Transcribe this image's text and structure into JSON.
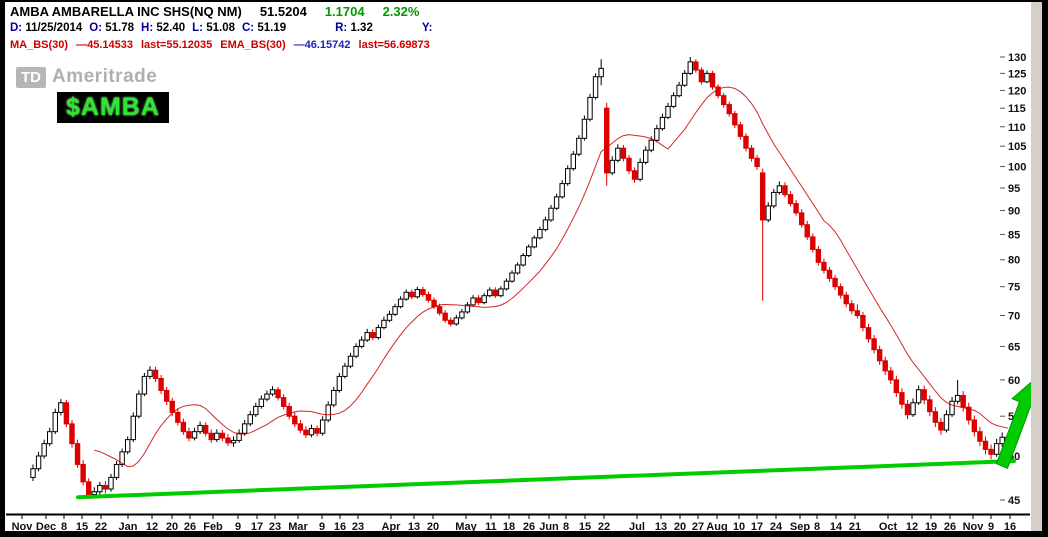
{
  "header": {
    "title": "AMBA AMBARELLA INC SHS(NQ NM)",
    "last": "51.5204",
    "change": "1.1704",
    "change_pct": "2.32%",
    "daily_row": [
      {
        "label": "D:",
        "value": "11/25/2014",
        "gap": false
      },
      {
        "label": "O:",
        "value": "51.78",
        "gap": false
      },
      {
        "label": "H:",
        "value": "52.40",
        "gap": false
      },
      {
        "label": "L:",
        "value": "51.08",
        "gap": false
      },
      {
        "label": "C:",
        "value": "51.19",
        "gap": false
      },
      {
        "label": "R:",
        "value": "1.32",
        "gap": true
      },
      {
        "label": "Y:",
        "value": "",
        "gap": true
      }
    ],
    "studies_row": [
      {
        "text": "MA_BS(30)",
        "color": "#cc0000"
      },
      {
        "text": "—45.14533",
        "color": "#cc0000"
      },
      {
        "text": "last=55.12035",
        "color": "#cc0000"
      },
      {
        "text": "EMA_BS(30)",
        "color": "#cc0000"
      },
      {
        "text": "—46.15742",
        "color": "#2222bb"
      },
      {
        "text": "last=56.69873",
        "color": "#cc0000"
      }
    ]
  },
  "watermark": {
    "logo": "TD",
    "name": "Ameritrade"
  },
  "annotation_label": "$AMBA",
  "colors": {
    "up_candle_stroke": "#000000",
    "up_candle_fill": "#ffffff",
    "down_candle": "#dd0000",
    "trend_green": "#00cc00",
    "header_green": "#009900",
    "label_navy": "#000099",
    "study_red": "#cc0000",
    "axis_text": "#111111"
  },
  "chart_data": {
    "type": "candlestick",
    "symbol": "AMBA",
    "interval": "daily",
    "y_scale": "log",
    "ylim": [
      45,
      130
    ],
    "y_ticks": [
      45,
      50,
      55,
      60,
      65,
      70,
      75,
      80,
      85,
      90,
      95,
      100,
      105,
      110,
      115,
      120,
      125,
      130
    ],
    "x_labels": [
      {
        "label": "Nov",
        "x": 22
      },
      {
        "label": "Dec",
        "x": 46
      },
      {
        "label": "8",
        "x": 64
      },
      {
        "label": "15",
        "x": 82
      },
      {
        "label": "22",
        "x": 101
      },
      {
        "label": "Jan",
        "x": 128
      },
      {
        "label": "12",
        "x": 152
      },
      {
        "label": "20",
        "x": 172
      },
      {
        "label": "26",
        "x": 190
      },
      {
        "label": "Feb",
        "x": 213
      },
      {
        "label": "9",
        "x": 238
      },
      {
        "label": "17",
        "x": 257
      },
      {
        "label": "23",
        "x": 275
      },
      {
        "label": "Mar",
        "x": 298
      },
      {
        "label": "9",
        "x": 322
      },
      {
        "label": "16",
        "x": 340
      },
      {
        "label": "23",
        "x": 358
      },
      {
        "label": "Apr",
        "x": 391
      },
      {
        "label": "13",
        "x": 414
      },
      {
        "label": "20",
        "x": 433
      },
      {
        "label": "May",
        "x": 466
      },
      {
        "label": "11",
        "x": 491
      },
      {
        "label": "18",
        "x": 509
      },
      {
        "label": "26",
        "x": 529
      },
      {
        "label": "Jun",
        "x": 549
      },
      {
        "label": "8",
        "x": 566
      },
      {
        "label": "15",
        "x": 585
      },
      {
        "label": "22",
        "x": 604
      },
      {
        "label": "Jul",
        "x": 637
      },
      {
        "label": "13",
        "x": 661
      },
      {
        "label": "20",
        "x": 680
      },
      {
        "label": "27",
        "x": 698
      },
      {
        "label": "Aug",
        "x": 717
      },
      {
        "label": "10",
        "x": 739
      },
      {
        "label": "17",
        "x": 757
      },
      {
        "label": "24",
        "x": 776
      },
      {
        "label": "Sep",
        "x": 800
      },
      {
        "label": "8",
        "x": 817
      },
      {
        "label": "14",
        "x": 836
      },
      {
        "label": "21",
        "x": 855
      },
      {
        "label": "Oct",
        "x": 888
      },
      {
        "label": "12",
        "x": 912
      },
      {
        "label": "19",
        "x": 931
      },
      {
        "label": "26",
        "x": 950
      },
      {
        "label": "Nov",
        "x": 973
      },
      {
        "label": "9",
        "x": 991
      },
      {
        "label": "16",
        "x": 1010
      }
    ],
    "ohlc": [
      [
        47.5,
        49.0,
        47.1,
        48.5
      ],
      [
        48.5,
        50.5,
        48.2,
        50.0
      ],
      [
        50.0,
        52.0,
        49.7,
        51.5
      ],
      [
        51.5,
        53.5,
        51.2,
        53.0
      ],
      [
        53.0,
        56.0,
        52.7,
        55.5
      ],
      [
        55.5,
        57.3,
        55.1,
        56.8
      ],
      [
        56.8,
        57.2,
        53.6,
        54.0
      ],
      [
        54.0,
        54.5,
        51.0,
        51.5
      ],
      [
        51.5,
        52.0,
        48.6,
        49.0
      ],
      [
        49.0,
        49.5,
        46.6,
        47.0
      ],
      [
        47.0,
        47.4,
        45.2,
        45.6
      ],
      [
        45.6,
        46.4,
        45.3,
        45.9
      ],
      [
        45.9,
        47.0,
        45.5,
        46.6
      ],
      [
        46.6,
        47.1,
        45.7,
        46.2
      ],
      [
        46.2,
        47.9,
        45.9,
        47.5
      ],
      [
        47.5,
        49.4,
        47.2,
        49.0
      ],
      [
        49.0,
        50.9,
        48.7,
        50.5
      ],
      [
        50.5,
        52.4,
        50.2,
        52.0
      ],
      [
        52.0,
        55.5,
        51.7,
        55.0
      ],
      [
        55.0,
        58.5,
        54.7,
        58.0
      ],
      [
        58.0,
        61.0,
        57.7,
        60.5
      ],
      [
        60.5,
        62.0,
        60.1,
        61.4
      ],
      [
        61.4,
        61.9,
        59.7,
        60.2
      ],
      [
        60.2,
        60.7,
        58.0,
        58.5
      ],
      [
        58.5,
        59.0,
        56.5,
        57.0
      ],
      [
        57.0,
        57.5,
        55.0,
        55.5
      ],
      [
        55.5,
        56.0,
        53.8,
        54.2
      ],
      [
        54.2,
        54.7,
        52.6,
        53.0
      ],
      [
        53.0,
        53.5,
        51.8,
        52.2
      ],
      [
        52.2,
        53.5,
        51.9,
        53.0
      ],
      [
        53.0,
        54.3,
        52.7,
        53.8
      ],
      [
        53.8,
        54.2,
        52.4,
        52.8
      ],
      [
        52.8,
        53.3,
        51.6,
        52.0
      ],
      [
        52.0,
        53.3,
        51.7,
        52.8
      ],
      [
        52.8,
        53.2,
        51.8,
        52.2
      ],
      [
        52.2,
        52.7,
        51.2,
        51.6
      ],
      [
        51.6,
        52.4,
        51.1,
        51.9
      ],
      [
        51.9,
        53.3,
        51.6,
        52.8
      ],
      [
        52.8,
        54.5,
        52.5,
        54.0
      ],
      [
        54.0,
        55.7,
        53.7,
        55.2
      ],
      [
        55.2,
        56.8,
        54.9,
        56.3
      ],
      [
        56.3,
        57.8,
        56.0,
        57.3
      ],
      [
        57.3,
        58.5,
        57.0,
        58.0
      ],
      [
        58.0,
        59.1,
        57.7,
        58.6
      ],
      [
        58.6,
        59.0,
        57.1,
        57.5
      ],
      [
        57.5,
        58.0,
        55.9,
        56.3
      ],
      [
        56.3,
        56.8,
        54.6,
        55.0
      ],
      [
        55.0,
        55.5,
        53.6,
        54.0
      ],
      [
        54.0,
        54.5,
        52.8,
        53.2
      ],
      [
        53.2,
        53.7,
        52.2,
        52.6
      ],
      [
        52.6,
        53.9,
        52.3,
        53.4
      ],
      [
        53.4,
        53.8,
        52.4,
        52.8
      ],
      [
        52.8,
        55.0,
        52.5,
        54.5
      ],
      [
        54.5,
        57.0,
        54.2,
        56.5
      ],
      [
        56.5,
        59.0,
        56.2,
        58.5
      ],
      [
        58.5,
        61.0,
        58.2,
        60.5
      ],
      [
        60.5,
        62.5,
        60.2,
        62.0
      ],
      [
        62.0,
        64.0,
        61.7,
        63.5
      ],
      [
        63.5,
        65.5,
        63.2,
        65.0
      ],
      [
        65.0,
        66.6,
        64.7,
        66.0
      ],
      [
        66.0,
        67.8,
        65.7,
        67.2
      ],
      [
        67.2,
        67.7,
        66.0,
        66.4
      ],
      [
        66.4,
        68.5,
        66.1,
        68.0
      ],
      [
        68.0,
        69.8,
        67.7,
        69.2
      ],
      [
        69.2,
        70.8,
        68.9,
        70.2
      ],
      [
        70.2,
        72.0,
        69.9,
        71.5
      ],
      [
        71.5,
        73.3,
        71.2,
        72.8
      ],
      [
        72.8,
        74.5,
        72.5,
        74.0
      ],
      [
        74.0,
        74.5,
        72.8,
        73.2
      ],
      [
        73.2,
        75.0,
        72.9,
        74.5
      ],
      [
        74.5,
        75.0,
        73.2,
        73.6
      ],
      [
        73.6,
        74.1,
        72.2,
        72.6
      ],
      [
        72.6,
        73.1,
        71.1,
        71.5
      ],
      [
        71.5,
        72.0,
        70.0,
        70.4
      ],
      [
        70.4,
        70.9,
        68.8,
        69.2
      ],
      [
        69.2,
        69.7,
        68.2,
        68.6
      ],
      [
        68.6,
        70.1,
        68.3,
        69.6
      ],
      [
        69.6,
        71.1,
        69.3,
        70.6
      ],
      [
        70.6,
        72.3,
        70.3,
        71.8
      ],
      [
        71.8,
        73.5,
        71.5,
        73.0
      ],
      [
        73.0,
        73.5,
        71.8,
        72.2
      ],
      [
        72.2,
        73.9,
        71.9,
        73.4
      ],
      [
        73.4,
        74.9,
        73.1,
        74.4
      ],
      [
        74.4,
        74.9,
        73.0,
        73.4
      ],
      [
        73.4,
        75.1,
        73.1,
        74.6
      ],
      [
        74.6,
        76.5,
        74.3,
        76.0
      ],
      [
        76.0,
        78.0,
        75.7,
        77.5
      ],
      [
        77.5,
        79.5,
        77.2,
        79.0
      ],
      [
        79.0,
        81.3,
        78.7,
        80.8
      ],
      [
        80.8,
        83.0,
        80.5,
        82.5
      ],
      [
        82.5,
        84.8,
        82.2,
        84.3
      ],
      [
        84.3,
        86.6,
        84.0,
        86.0
      ],
      [
        86.0,
        88.7,
        85.6,
        88.0
      ],
      [
        88.0,
        91.2,
        87.6,
        90.5
      ],
      [
        90.5,
        93.7,
        90.1,
        93.0
      ],
      [
        93.0,
        96.8,
        92.6,
        96.0
      ],
      [
        96.0,
        100.3,
        95.5,
        99.5
      ],
      [
        99.5,
        103.8,
        99.0,
        103.0
      ],
      [
        103.0,
        107.8,
        102.5,
        107.0
      ],
      [
        107.0,
        113.0,
        106.4,
        112.0
      ],
      [
        112.0,
        119.0,
        111.4,
        118.0
      ],
      [
        118.0,
        125.0,
        117.4,
        124.0
      ],
      [
        124.0,
        129.3,
        121.5,
        126.5
      ],
      [
        115.0,
        116.5,
        95.5,
        98.5
      ],
      [
        98.5,
        102.5,
        98.0,
        101.5
      ],
      [
        101.5,
        105.5,
        101.0,
        104.5
      ],
      [
        104.5,
        105.3,
        101.2,
        102.0
      ],
      [
        102.0,
        102.8,
        98.2,
        99.0
      ],
      [
        99.0,
        99.8,
        96.2,
        97.0
      ],
      [
        97.0,
        102.0,
        96.5,
        101.0
      ],
      [
        101.0,
        105.0,
        100.5,
        104.0
      ],
      [
        104.0,
        107.5,
        103.5,
        106.5
      ],
      [
        106.5,
        110.5,
        106.0,
        109.5
      ],
      [
        109.5,
        113.5,
        109.0,
        112.5
      ],
      [
        112.5,
        116.5,
        112.0,
        115.5
      ],
      [
        115.5,
        119.5,
        115.0,
        118.5
      ],
      [
        118.5,
        122.5,
        118.0,
        121.5
      ],
      [
        121.5,
        126.0,
        121.0,
        125.0
      ],
      [
        125.0,
        130.0,
        124.5,
        128.5
      ],
      [
        128.5,
        129.3,
        125.2,
        126.0
      ],
      [
        126.0,
        126.8,
        121.7,
        122.5
      ],
      [
        122.5,
        125.9,
        122.1,
        125.0
      ],
      [
        125.0,
        125.8,
        120.2,
        121.0
      ],
      [
        121.0,
        121.8,
        117.7,
        118.5
      ],
      [
        118.5,
        119.3,
        115.2,
        116.0
      ],
      [
        116.0,
        116.8,
        112.7,
        113.5
      ],
      [
        113.5,
        114.3,
        109.7,
        110.5
      ],
      [
        110.5,
        111.3,
        106.7,
        107.5
      ],
      [
        107.5,
        108.3,
        103.7,
        104.5
      ],
      [
        104.5,
        105.3,
        101.2,
        102.0
      ],
      [
        102.0,
        102.8,
        99.2,
        100.0
      ],
      [
        98.5,
        99.5,
        72.5,
        88.0
      ],
      [
        88.0,
        91.8,
        87.5,
        91.0
      ],
      [
        91.0,
        94.8,
        90.5,
        94.0
      ],
      [
        94.0,
        96.5,
        93.5,
        95.5
      ],
      [
        95.5,
        96.3,
        92.9,
        93.5
      ],
      [
        93.5,
        94.3,
        90.9,
        91.5
      ],
      [
        91.5,
        92.3,
        88.9,
        89.5
      ],
      [
        89.5,
        90.3,
        86.4,
        87.0
      ],
      [
        87.0,
        87.8,
        83.9,
        84.5
      ],
      [
        84.5,
        85.2,
        81.4,
        82.0
      ],
      [
        82.0,
        82.7,
        78.9,
        79.5
      ],
      [
        79.5,
        80.2,
        77.4,
        78.0
      ],
      [
        78.0,
        78.6,
        75.9,
        76.5
      ],
      [
        76.5,
        77.1,
        74.4,
        75.0
      ],
      [
        75.0,
        75.6,
        72.9,
        73.5
      ],
      [
        73.5,
        74.1,
        71.4,
        72.0
      ],
      [
        72.0,
        72.6,
        70.2,
        70.8
      ],
      [
        70.8,
        71.9,
        69.5,
        70.0
      ],
      [
        70.0,
        70.6,
        67.4,
        68.0
      ],
      [
        68.0,
        68.6,
        65.6,
        66.2
      ],
      [
        66.2,
        66.8,
        63.9,
        64.5
      ],
      [
        64.5,
        65.1,
        62.2,
        62.8
      ],
      [
        62.8,
        63.4,
        60.7,
        61.3
      ],
      [
        61.3,
        61.9,
        59.4,
        60.0
      ],
      [
        60.0,
        60.6,
        57.6,
        58.2
      ],
      [
        58.2,
        58.8,
        56.0,
        56.6
      ],
      [
        56.6,
        57.2,
        54.6,
        55.2
      ],
      [
        55.2,
        57.4,
        54.9,
        56.8
      ],
      [
        56.8,
        59.2,
        56.5,
        58.6
      ],
      [
        58.6,
        59.2,
        56.6,
        57.2
      ],
      [
        57.2,
        57.8,
        55.0,
        55.6
      ],
      [
        55.6,
        56.2,
        53.6,
        54.2
      ],
      [
        54.2,
        54.8,
        52.6,
        53.2
      ],
      [
        53.2,
        55.8,
        52.9,
        55.2
      ],
      [
        55.2,
        57.6,
        54.9,
        57.0
      ],
      [
        57.0,
        60.0,
        56.6,
        57.8
      ],
      [
        57.8,
        58.4,
        55.6,
        56.2
      ],
      [
        56.2,
        56.8,
        53.9,
        54.5
      ],
      [
        54.5,
        55.1,
        52.4,
        53.0
      ],
      [
        53.0,
        53.6,
        51.2,
        51.8
      ],
      [
        51.8,
        52.4,
        50.2,
        50.8
      ],
      [
        50.8,
        51.4,
        49.6,
        50.2
      ],
      [
        50.2,
        52.1,
        49.9,
        51.5
      ],
      [
        51.5,
        52.9,
        51.1,
        52.3
      ],
      [
        52.3,
        52.6,
        50.7,
        51.2
      ]
    ],
    "overlays": {
      "ma30_last": 55.12035,
      "ema30_last": 56.69873
    },
    "trendline": {
      "x1": 78,
      "price1": 45.3,
      "x2": 1014,
      "price2": 49.4,
      "width": 4
    },
    "arrow": {
      "direction": "up",
      "position": "bottom-right"
    }
  }
}
